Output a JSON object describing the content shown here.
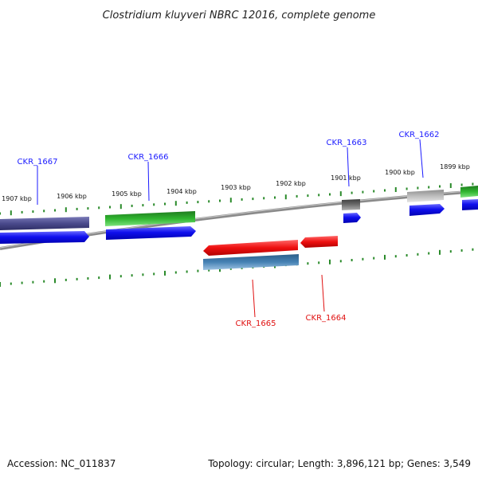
{
  "title": "Clostridium kluyveri NBRC 12016, complete genome",
  "footer": {
    "accession": "Accession: NC_011837",
    "summary": "Topology: circular; Length: 3,896,121 bp; Genes: 3,549"
  },
  "colors": {
    "forward_label": "#1a1aff",
    "reverse_label": "#e01010",
    "tick": "#2a8a2a",
    "backbone": "#7a7a7a"
  },
  "kbp_labels": [
    "1907 kbp",
    "1906 kbp",
    "1905 kbp",
    "1904 kbp",
    "1903 kbp",
    "1902 kbp",
    "1901 kbp",
    "1900 kbp",
    "1899 kbp"
  ],
  "genes": [
    {
      "id": "CKR_1667",
      "strand": "forward",
      "category_color": "#4a4a8c"
    },
    {
      "id": "CKR_1666",
      "strand": "forward",
      "category_color": "#2fb52f"
    },
    {
      "id": "CKR_1665",
      "strand": "reverse",
      "category_color": "#4682b4"
    },
    {
      "id": "CKR_1664",
      "strand": "reverse",
      "category_color": "#e01010"
    },
    {
      "id": "CKR_1663",
      "strand": "forward",
      "category_color": "#6e6e6e"
    },
    {
      "id": "CKR_1662",
      "strand": "forward",
      "category_color": "#b4b4b4"
    }
  ]
}
